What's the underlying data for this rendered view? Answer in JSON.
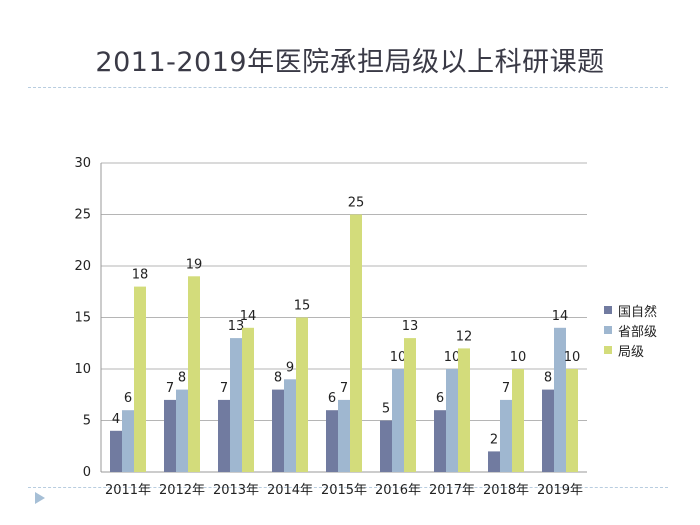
{
  "chart_data": {
    "type": "bar",
    "title": "2011-2019年医院承担局级以上科研课题",
    "categories": [
      "2011年",
      "2012年",
      "2013年",
      "2014年",
      "2015年",
      "2016年",
      "2017年",
      "2018年",
      "2019年"
    ],
    "series": [
      {
        "name": "国自然",
        "color": "#717ba0",
        "values": [
          4,
          7,
          7,
          8,
          6,
          5,
          6,
          2,
          8
        ]
      },
      {
        "name": "省部级",
        "color": "#9fb7d0",
        "values": [
          6,
          8,
          13,
          9,
          7,
          10,
          10,
          7,
          14
        ]
      },
      {
        "name": "局级",
        "color": "#d3dc7b",
        "values": [
          18,
          19,
          14,
          15,
          25,
          13,
          12,
          10,
          10
        ]
      }
    ],
    "yticks": [
      "0",
      "5",
      "10",
      "15",
      "20",
      "25",
      "30"
    ],
    "ylim": [
      0,
      30
    ],
    "xlabel": "",
    "ylabel": "",
    "grid": true,
    "legend": "right"
  }
}
